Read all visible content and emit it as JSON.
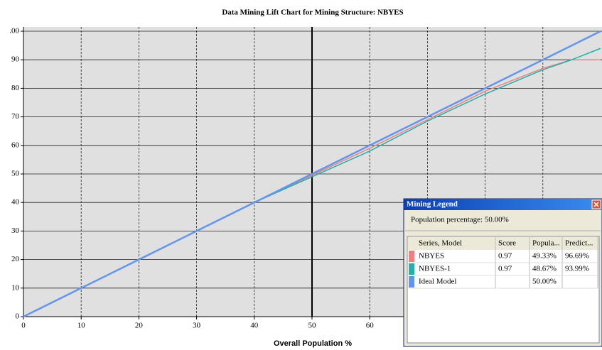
{
  "chart_data": {
    "type": "line",
    "title": "Data Mining Lift Chart for Mining Structure: NBYES",
    "xlabel": "Overall Population %",
    "x": [
      0,
      10,
      20,
      30,
      40,
      50,
      60,
      70,
      80,
      90,
      95,
      100
    ],
    "series": [
      {
        "name": "NBYES",
        "color": "#f08080",
        "values": [
          0,
          10,
          20,
          30,
          40,
          49.5,
          59,
          69,
          79,
          87,
          90,
          90
        ]
      },
      {
        "name": "NBYES-1",
        "color": "#20b2aa",
        "values": [
          0,
          10,
          20,
          30,
          40,
          49,
          58,
          68.5,
          78,
          86.5,
          90,
          94
        ]
      },
      {
        "name": "Ideal Model",
        "color": "#6495ed",
        "values": [
          0,
          10,
          20,
          30,
          40,
          50,
          60,
          70,
          80,
          90,
          95,
          100
        ]
      }
    ],
    "xlim": [
      0,
      100
    ],
    "ylim": [
      0,
      100
    ],
    "xticks": [
      0,
      10,
      20,
      30,
      40,
      50,
      60,
      70,
      80,
      90,
      100
    ],
    "yticks": [
      0,
      10,
      20,
      30,
      40,
      50,
      60,
      70,
      80,
      90,
      {
        "value": 100,
        "label": ".00"
      }
    ],
    "grid": true,
    "cursor": 50
  },
  "legend_window": {
    "title": "Mining Legend",
    "population": "Population percentage: 50.00%",
    "columns": [
      "Series, Model",
      "Score",
      "Popula...",
      "Predict..."
    ],
    "rows": [
      {
        "score": "0.97",
        "population": "49.33%",
        "predict": "96.69%"
      },
      {
        "score": "0.97",
        "population": "48.67%",
        "predict": "93.99%"
      },
      {
        "population": "50.00%"
      }
    ]
  }
}
